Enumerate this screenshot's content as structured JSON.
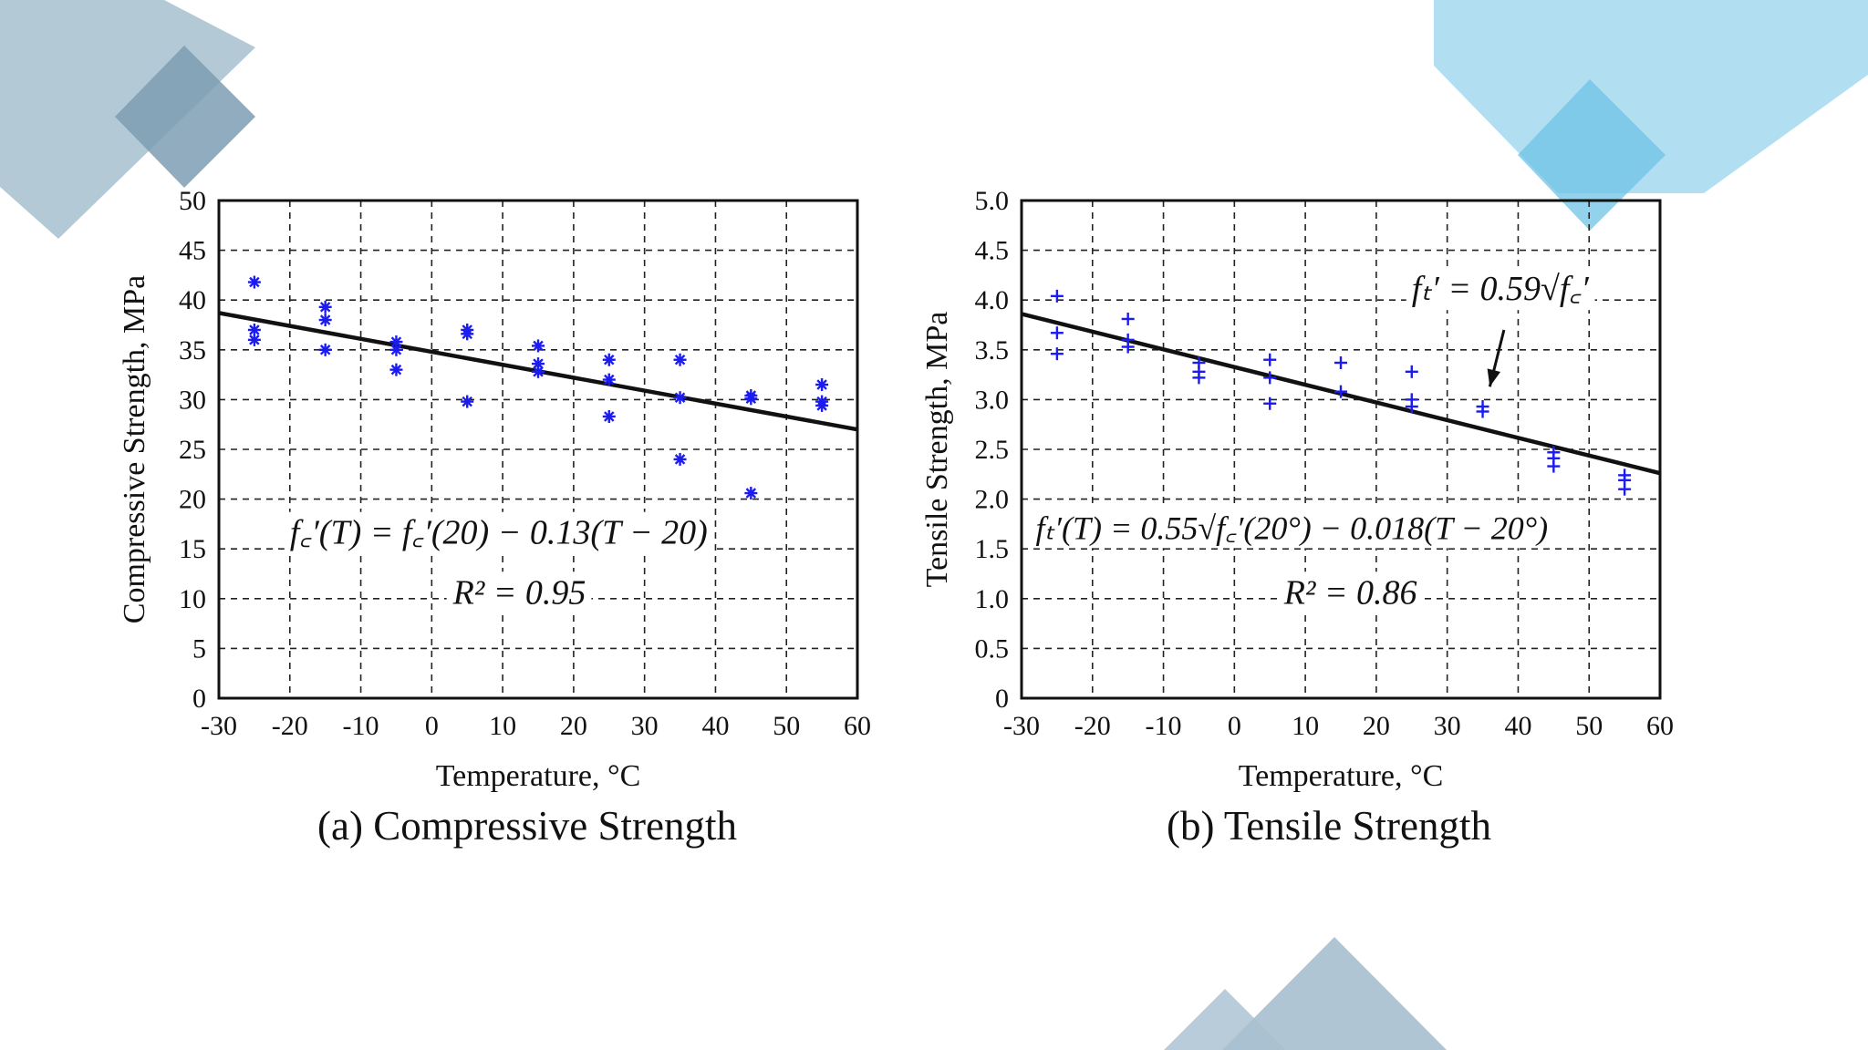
{
  "decor": {
    "gray_color": "#a7bfcf",
    "gray_dark": "#7d9db3",
    "blue_color": "#a8dcf0",
    "blue_dark": "#6fc3e6"
  },
  "chart_data": [
    {
      "type": "scatter",
      "id": "a",
      "caption": "(a) Compressive Strength",
      "xlabel": "Temperature, °C",
      "ylabel": "Compressive Strength, MPa",
      "xlim": [
        -30,
        60
      ],
      "ylim": [
        0,
        50
      ],
      "xticks": [
        -30,
        -20,
        -10,
        0,
        10,
        20,
        30,
        40,
        50,
        60
      ],
      "yticks": [
        0,
        5,
        10,
        15,
        20,
        25,
        30,
        35,
        40,
        45,
        50
      ],
      "xtick_labels": [
        "-30",
        "-20",
        "-10",
        "0",
        "10",
        "20",
        "30",
        "40",
        "50",
        "60"
      ],
      "ytick_labels": [
        "0",
        "5",
        "10",
        "15",
        "20",
        "25",
        "30",
        "35",
        "40",
        "45",
        "50"
      ],
      "grid": true,
      "marker": "asterisk",
      "marker_color": "#1c1cf0",
      "points": [
        {
          "x": -25,
          "y": 41.8
        },
        {
          "x": -25,
          "y": 37.0
        },
        {
          "x": -25,
          "y": 36.0
        },
        {
          "x": -15,
          "y": 39.3
        },
        {
          "x": -15,
          "y": 38.0
        },
        {
          "x": -15,
          "y": 35.0
        },
        {
          "x": -5,
          "y": 35.8
        },
        {
          "x": -5,
          "y": 35.0
        },
        {
          "x": -5,
          "y": 33.0
        },
        {
          "x": 5,
          "y": 37.0
        },
        {
          "x": 5,
          "y": 36.6
        },
        {
          "x": 5,
          "y": 29.8
        },
        {
          "x": 15,
          "y": 35.4
        },
        {
          "x": 15,
          "y": 33.6
        },
        {
          "x": 15,
          "y": 32.8
        },
        {
          "x": 25,
          "y": 34.0
        },
        {
          "x": 25,
          "y": 32.0
        },
        {
          "x": 25,
          "y": 28.3
        },
        {
          "x": 35,
          "y": 34.0
        },
        {
          "x": 35,
          "y": 30.2
        },
        {
          "x": 35,
          "y": 24.0
        },
        {
          "x": 45,
          "y": 30.4
        },
        {
          "x": 45,
          "y": 30.1
        },
        {
          "x": 45,
          "y": 20.6
        },
        {
          "x": 55,
          "y": 31.5
        },
        {
          "x": 55,
          "y": 29.8
        },
        {
          "x": 55,
          "y": 29.4
        }
      ],
      "fit_line": {
        "x": [
          -30,
          60
        ],
        "y": [
          38.7,
          27.0
        ]
      },
      "annotations": [
        {
          "text": "f꜀′(T) = f꜀′(20) − 0.13(T − 20)",
          "x": -20,
          "y": 15.5
        },
        {
          "text": "R² = 0.95",
          "x": 3,
          "y": 9.5
        }
      ]
    },
    {
      "type": "scatter",
      "id": "b",
      "caption": "(b) Tensile Strength",
      "xlabel": "Temperature, °C",
      "ylabel": "Tensile Strength, MPa",
      "xlim": [
        -30,
        60
      ],
      "ylim": [
        0,
        5
      ],
      "xticks": [
        -30,
        -20,
        -10,
        0,
        10,
        20,
        30,
        40,
        50,
        60
      ],
      "yticks": [
        0,
        0.5,
        1.0,
        1.5,
        2.0,
        2.5,
        3.0,
        3.5,
        4.0,
        4.5,
        5.0
      ],
      "xtick_labels": [
        "-30",
        "-20",
        "-10",
        "0",
        "10",
        "20",
        "30",
        "40",
        "50",
        "60"
      ],
      "ytick_labels": [
        "0",
        "0.5",
        "1.0",
        "1.5",
        "2.0",
        "2.5",
        "3.0",
        "3.5",
        "4.0",
        "4.5",
        "5.0"
      ],
      "grid": true,
      "marker": "plus",
      "marker_color": "#1c1cf0",
      "points": [
        {
          "x": -25,
          "y": 4.04
        },
        {
          "x": -25,
          "y": 3.67
        },
        {
          "x": -25,
          "y": 3.46
        },
        {
          "x": -15,
          "y": 3.81
        },
        {
          "x": -15,
          "y": 3.6
        },
        {
          "x": -15,
          "y": 3.53
        },
        {
          "x": -5,
          "y": 3.37
        },
        {
          "x": -5,
          "y": 3.28
        },
        {
          "x": -5,
          "y": 3.22
        },
        {
          "x": 5,
          "y": 3.4
        },
        {
          "x": 5,
          "y": 3.22
        },
        {
          "x": 5,
          "y": 2.96
        },
        {
          "x": 15,
          "y": 3.37
        },
        {
          "x": 15,
          "y": 3.08
        },
        {
          "x": 25,
          "y": 3.28
        },
        {
          "x": 25,
          "y": 3.0
        },
        {
          "x": 25,
          "y": 2.93
        },
        {
          "x": 35,
          "y": 2.93
        },
        {
          "x": 35,
          "y": 2.88
        },
        {
          "x": 45,
          "y": 2.47
        },
        {
          "x": 45,
          "y": 2.41
        },
        {
          "x": 45,
          "y": 2.33
        },
        {
          "x": 55,
          "y": 2.24
        },
        {
          "x": 55,
          "y": 2.19
        },
        {
          "x": 55,
          "y": 2.1
        }
      ],
      "fit_line": {
        "x": [
          -30,
          60
        ],
        "y": [
          3.86,
          2.26
        ]
      },
      "arrow": {
        "from": [
          38,
          3.7
        ],
        "to": [
          36,
          3.13
        ]
      },
      "annotations": [
        {
          "text": "fₜ′ = 0.59√f꜀′",
          "x": 25,
          "y": 4.0
        },
        {
          "text": "fₜ′(T) = 0.55√f꜀′(20°) − 0.018(T − 20°)",
          "x": -28,
          "y": 1.6
        },
        {
          "text": "R² = 0.86",
          "x": 7,
          "y": 0.95
        }
      ]
    }
  ]
}
